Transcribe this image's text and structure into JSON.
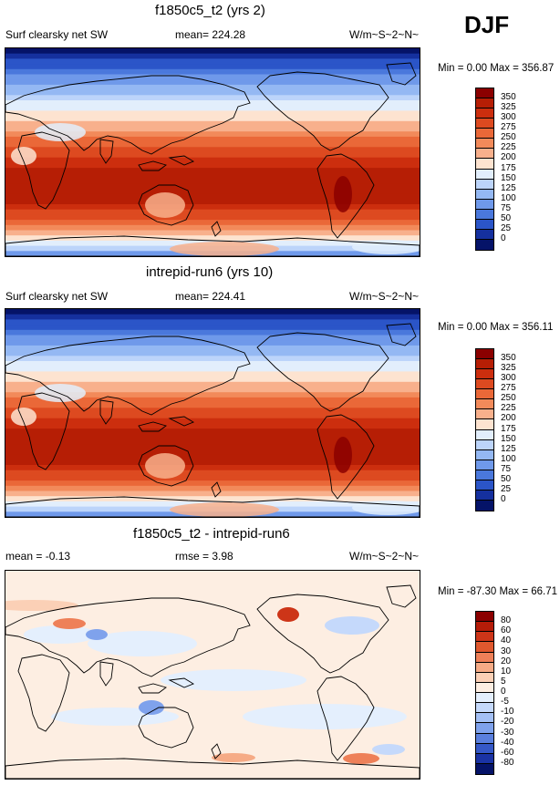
{
  "season": "DJF",
  "panels": [
    {
      "id": "panel-1",
      "title": "f1850c5_t2 (yrs 2)",
      "left_label": "Surf clearsky net SW",
      "center_label": "mean= 224.28",
      "units": "W/m~S~2~N~",
      "minmax": "Min = 0.00 Max = 356.87",
      "kind": "abs",
      "levels": [
        "350",
        "325",
        "300",
        "275",
        "250",
        "225",
        "200",
        "175",
        "150",
        "125",
        "100",
        "75",
        "50",
        "25",
        "0"
      ],
      "colors": [
        "#8b0000",
        "#b61e05",
        "#cc2e0e",
        "#dd4a20",
        "#ea6838",
        "#f28a5a",
        "#f8b08c",
        "#fde3d0",
        "#e2eefc",
        "#bcd4fa",
        "#94b8f3",
        "#6f99ea",
        "#4a78dc",
        "#2b55c8",
        "#15309e",
        "#051368"
      ],
      "pattern": "abs-a"
    },
    {
      "id": "panel-2",
      "title": "intrepid-run6 (yrs 10)",
      "left_label": "Surf clearsky net SW",
      "center_label": "mean= 224.41",
      "units": "W/m~S~2~N~",
      "minmax": "Min = 0.00 Max = 356.11",
      "kind": "abs",
      "levels": [
        "350",
        "325",
        "300",
        "275",
        "250",
        "225",
        "200",
        "175",
        "150",
        "125",
        "100",
        "75",
        "50",
        "25",
        "0"
      ],
      "colors": [
        "#8b0000",
        "#b61e05",
        "#cc2e0e",
        "#dd4a20",
        "#ea6838",
        "#f28a5a",
        "#f8b08c",
        "#fde3d0",
        "#e2eefc",
        "#bcd4fa",
        "#94b8f3",
        "#6f99ea",
        "#4a78dc",
        "#2b55c8",
        "#15309e",
        "#051368"
      ],
      "pattern": "abs-b"
    },
    {
      "id": "panel-3",
      "title": "f1850c5_t2 - intrepid-run6",
      "left_label": "mean = -0.13",
      "center_label": "rmse = 3.98",
      "units": "W/m~S~2~N~",
      "minmax": "Min = -87.30 Max = 66.71",
      "kind": "diff",
      "levels": [
        "80",
        "60",
        "40",
        "30",
        "20",
        "10",
        "5",
        "0",
        "-5",
        "-10",
        "-20",
        "-30",
        "-40",
        "-60",
        "-80"
      ],
      "colors": [
        "#8b0000",
        "#b51c08",
        "#cd3518",
        "#e0582e",
        "#ee8058",
        "#f6ab86",
        "#fbd0b6",
        "#fdeee2",
        "#e4effd",
        "#c5d9fb",
        "#a4c0f5",
        "#7fa2ec",
        "#5a7fdd",
        "#3558c7",
        "#1a33a4",
        "#051368"
      ],
      "pattern": "diff"
    }
  ],
  "chart_data": [
    {
      "type": "heatmap",
      "title": "f1850c5_t2 (yrs 2)",
      "variable": "Surf clearsky net SW",
      "season": "DJF",
      "mean": 224.28,
      "min": 0.0,
      "max": 356.87,
      "units": "W/m~S~2~N~",
      "colorbar_levels": [
        0,
        25,
        50,
        75,
        100,
        125,
        150,
        175,
        200,
        225,
        250,
        275,
        300,
        325,
        350
      ]
    },
    {
      "type": "heatmap",
      "title": "intrepid-run6 (yrs 10)",
      "variable": "Surf clearsky net SW",
      "season": "DJF",
      "mean": 224.41,
      "min": 0.0,
      "max": 356.11,
      "units": "W/m~S~2~N~",
      "colorbar_levels": [
        0,
        25,
        50,
        75,
        100,
        125,
        150,
        175,
        200,
        225,
        250,
        275,
        300,
        325,
        350
      ]
    },
    {
      "type": "heatmap",
      "title": "f1850c5_t2 - intrepid-run6",
      "season": "DJF",
      "mean": -0.13,
      "rmse": 3.98,
      "min": -87.3,
      "max": 66.71,
      "units": "W/m~S~2~N~",
      "colorbar_levels": [
        -80,
        -60,
        -40,
        -30,
        -20,
        -10,
        -5,
        0,
        5,
        10,
        20,
        30,
        40,
        60,
        80
      ]
    }
  ]
}
